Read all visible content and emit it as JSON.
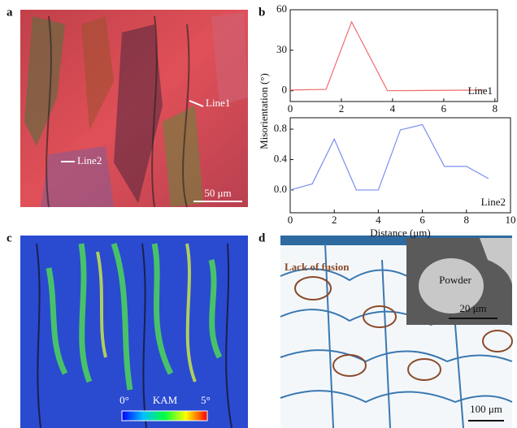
{
  "panels": {
    "a": {
      "label": "a",
      "line1": "Line1",
      "line2": "Line2",
      "scale": "50 μm"
    },
    "b": {
      "label": "b"
    },
    "c": {
      "label": "c",
      "kam_min": "0°",
      "kam": "KAM",
      "kam_max": "5°"
    },
    "d": {
      "label": "d",
      "lack": "Lack of fusion",
      "powder": "Powder",
      "scale_inset": "20 μm",
      "scale": "100 μm"
    }
  },
  "chart_data": [
    {
      "type": "line",
      "ylabel": "Misorientation (°)",
      "x": [
        0,
        1.4,
        2.4,
        3.8,
        7.6
      ],
      "series": [
        {
          "name": "Line1",
          "color": "#f26b6b",
          "values": [
            0.5,
            1,
            51,
            0,
            0.5
          ]
        }
      ],
      "xlim": [
        0,
        8.1
      ],
      "xticks": [
        0,
        2,
        4,
        6,
        8
      ],
      "ylim": [
        -8,
        60
      ],
      "yticks": [
        0,
        30,
        60
      ]
    },
    {
      "type": "line",
      "xlabel": "Distance (μm)",
      "x": [
        0,
        1,
        2,
        3,
        4,
        5,
        6,
        7,
        8,
        9
      ],
      "series": [
        {
          "name": "Line2",
          "color": "#7b8ef0",
          "values": [
            0,
            0.08,
            0.67,
            0,
            0,
            0.79,
            0.86,
            0.31,
            0.31,
            0.15
          ]
        }
      ],
      "xlim": [
        0,
        10
      ],
      "xticks": [
        0,
        2,
        4,
        6,
        8,
        10
      ],
      "ylim": [
        -0.3,
        0.95
      ],
      "yticks": [
        {
          "value": 0,
          "label": "0.0"
        },
        {
          "value": 0.4,
          "label": "0.4"
        },
        {
          "value": 0.8,
          "label": "0.8"
        }
      ]
    }
  ]
}
